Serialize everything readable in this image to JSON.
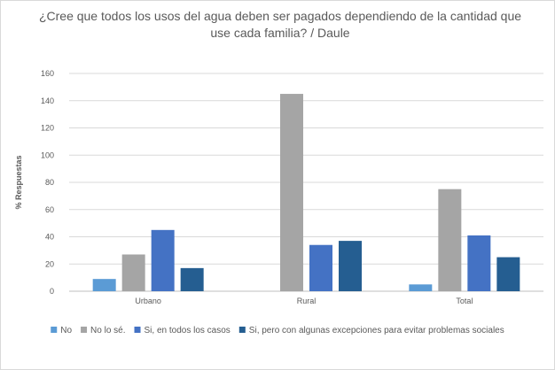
{
  "chart_data": {
    "type": "bar",
    "title": "¿Cree que todos los usos del agua deben ser pagados dependiendo de la cantidad que use cada familia? / Daule",
    "ylabel": "% Respuestas",
    "xlabel": "",
    "ylim": [
      0,
      160
    ],
    "yticks": [
      0,
      20,
      40,
      60,
      80,
      100,
      120,
      140,
      160
    ],
    "grid": true,
    "legend_position": "bottom",
    "categories": [
      "Urbano",
      "Rural",
      "Total"
    ],
    "series": [
      {
        "name": "No",
        "color": "#5b9bd5",
        "values": [
          9,
          0,
          5
        ]
      },
      {
        "name": "No lo sé.",
        "color": "#a5a5a5",
        "values": [
          27,
          145,
          75
        ]
      },
      {
        "name": "Si, en todos los casos",
        "color": "#4472c4",
        "values": [
          45,
          34,
          41
        ]
      },
      {
        "name": "Si, pero con algunas excepciones para evitar problemas sociales",
        "color": "#255e91",
        "values": [
          17,
          37,
          25
        ]
      }
    ]
  }
}
